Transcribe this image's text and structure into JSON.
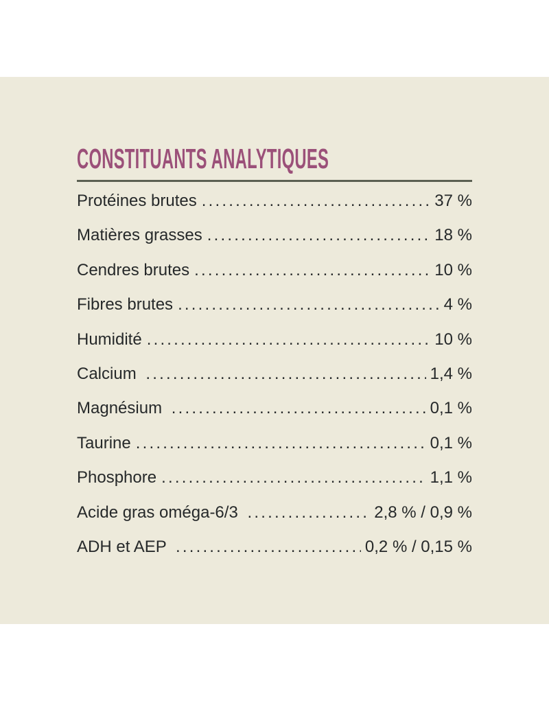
{
  "colors": {
    "page": "#ffffff",
    "background": "#edeadb",
    "title": "#9b5079",
    "divider": "#5b6052",
    "text": "#26292a"
  },
  "panel": {
    "title": "CONSTITUANTS ANALYTIQUES",
    "rows": [
      {
        "label": "Protéines brutes",
        "value": "37 %"
      },
      {
        "label": "Matières grasses",
        "value": "18 %"
      },
      {
        "label": "Cendres brutes",
        "value": "10 %"
      },
      {
        "label": "Fibres brutes",
        "value": "4 %"
      },
      {
        "label": "Humidité",
        "value": "10 %"
      },
      {
        "label": "Calcium ",
        "value": "1,4 %"
      },
      {
        "label": "Magnésium ",
        "value": "0,1 %"
      },
      {
        "label": "Taurine",
        "value": "0,1 %"
      },
      {
        "label": "Phosphore",
        "value": "1,1 %"
      },
      {
        "label": "Acide gras oméga-6/3 ",
        "value": "2,8 % / 0,9 %"
      },
      {
        "label": "ADH et AEP ",
        "value": "0,2 % / 0,15 %"
      }
    ]
  }
}
